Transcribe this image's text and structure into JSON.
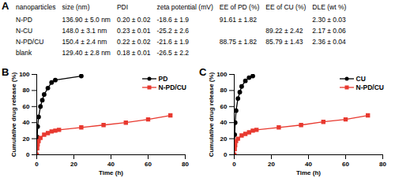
{
  "table": {
    "title": "A",
    "header": [
      "nanoparticles",
      "size (nm)",
      "PDI",
      "zeta potential (mV)",
      "EE of PD (%)",
      "EE of CU (%)",
      "DLE (wt %)"
    ],
    "rows": [
      [
        "N-PD",
        "136.90 ± 5.0 nm",
        "0.20 ± 0.02",
        "-18.6 ± 1.9",
        "91.61 ± 1.82",
        null,
        "2.30 ± 0.03"
      ],
      [
        "N-CU",
        "148.0 ± 3.1 nm",
        "0.23 ± 0.01",
        "-25.2 ± 2.6",
        null,
        "89.22 ± 2.42",
        "2.17 ± 0.06"
      ],
      [
        "N-PD/CU",
        "150.4 ± 2.4 nm",
        "0.22 ± 0.02",
        "-21.6 ± 1.9",
        "88.75 ± 1.82",
        "85.79 ± 1.43",
        "2.36 ± 0.04"
      ],
      [
        "blank",
        "129.40 ± 2.8 nm",
        "0.18 ± 0.01",
        "-26.5 ± 2.2",
        null,
        null,
        null
      ]
    ]
  },
  "chart_data": [
    {
      "type": "line",
      "title": "B",
      "x_label": "Time (h)",
      "y_label": "Cumulative drug release (%)",
      "xlim": [
        0,
        80
      ],
      "xticks": [
        0,
        20,
        40,
        60,
        80
      ],
      "ylim": [
        0,
        100
      ],
      "yticks": [
        0,
        20,
        40,
        60,
        80,
        100
      ],
      "legend": "upper right",
      "series": [
        {
          "name": "PD",
          "color": "#000000",
          "marker": "circle",
          "x": [
            0,
            0.25,
            0.5,
            1,
            2,
            3,
            4,
            6,
            8,
            10,
            24
          ],
          "values": [
            0,
            22,
            35,
            47,
            60,
            68,
            75,
            83,
            90,
            93,
            98
          ]
        },
        {
          "name": "N-PD/CU",
          "color": "#e8392f",
          "marker": "square",
          "x": [
            0,
            0.25,
            0.5,
            1,
            2,
            4,
            6,
            8,
            10,
            12,
            24,
            36,
            48,
            60,
            72
          ],
          "values": [
            0,
            8,
            13,
            17,
            21,
            25,
            27,
            29,
            30,
            31,
            34,
            37,
            40,
            44,
            49
          ]
        }
      ]
    },
    {
      "type": "line",
      "title": "C",
      "x_label": "Time (h)",
      "y_label": "Cumulative drug release (%)",
      "xlim": [
        0,
        80
      ],
      "xticks": [
        0,
        20,
        40,
        60,
        80
      ],
      "ylim": [
        0,
        100
      ],
      "yticks": [
        0,
        20,
        40,
        60,
        80,
        100
      ],
      "legend": "upper right",
      "series": [
        {
          "name": "CU",
          "color": "#000000",
          "marker": "circle",
          "x": [
            0,
            0.25,
            0.5,
            1,
            2,
            3,
            4,
            6,
            8,
            10
          ],
          "values": [
            0,
            25,
            40,
            55,
            70,
            78,
            85,
            92,
            96,
            98
          ]
        },
        {
          "name": "N-PD/CU",
          "color": "#e8392f",
          "marker": "square",
          "x": [
            0,
            0.25,
            0.5,
            1,
            2,
            4,
            6,
            8,
            10,
            12,
            24,
            36,
            48,
            60,
            72
          ],
          "values": [
            0,
            7,
            12,
            17,
            20,
            24,
            26,
            28,
            30,
            31,
            34,
            37,
            41,
            44,
            49
          ]
        }
      ]
    }
  ]
}
